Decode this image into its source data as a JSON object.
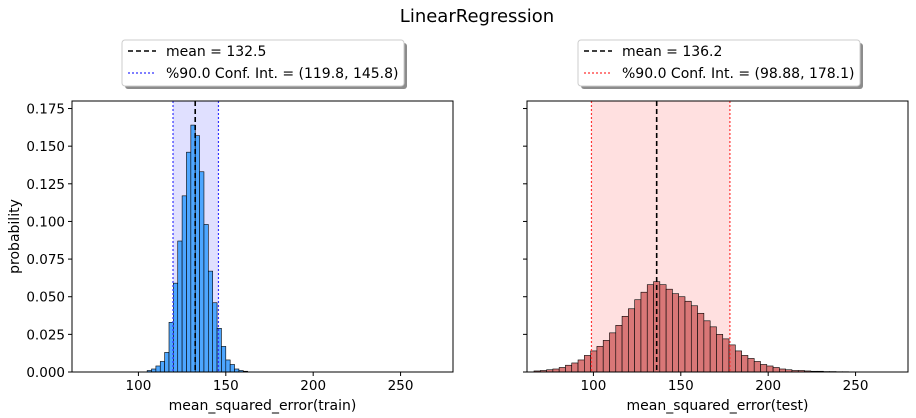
{
  "figure": {
    "title": "LinearRegression"
  },
  "chart_data": [
    {
      "type": "bar",
      "subtype": "histogram",
      "xlabel": "mean_squared_error(train)",
      "ylabel": "probability",
      "xlim": [
        62,
        280
      ],
      "ylim": [
        0,
        0.18
      ],
      "xticks": [
        100,
        150,
        200,
        250
      ],
      "yticks": [
        0.0,
        0.025,
        0.05,
        0.075,
        0.1,
        0.125,
        0.15,
        0.175
      ],
      "ytick_labels": [
        "0.000",
        "0.025",
        "0.050",
        "0.075",
        "0.100",
        "0.125",
        "0.150",
        "0.175"
      ],
      "bar_color": "#4da6ff",
      "band_color": "#e0e0ff",
      "ci_line_color": "#3333ff",
      "mean": 132.5,
      "ci": [
        119.8,
        145.8
      ],
      "bin_width": 2.5,
      "bins_start": 105,
      "values": [
        0.001,
        0.002,
        0.004,
        0.007,
        0.013,
        0.033,
        0.059,
        0.087,
        0.117,
        0.146,
        0.164,
        0.157,
        0.133,
        0.098,
        0.067,
        0.046,
        0.029,
        0.017,
        0.008,
        0.005,
        0.002,
        0.001,
        0.0005
      ],
      "legend": {
        "placement": "top-center",
        "entries": [
          {
            "label": "mean = 132.5",
            "style": "dashed",
            "color": "#000000"
          },
          {
            "label": "%90.0 Conf. Int. = (119.8, 145.8)",
            "style": "dotted",
            "color": "#3333ff"
          }
        ]
      },
      "grid": false
    },
    {
      "type": "bar",
      "subtype": "histogram",
      "xlabel": "mean_squared_error(test)",
      "ylabel": "",
      "xlim": [
        62,
        280
      ],
      "ylim": [
        0,
        0.18
      ],
      "xticks": [
        100,
        150,
        200,
        250
      ],
      "bar_color": "#d97777",
      "band_color": "#ffe0e0",
      "ci_line_color": "#ff3333",
      "mean": 136.2,
      "ci": [
        98.88,
        178.1
      ],
      "bin_width": 3.6,
      "bins_start": 66,
      "values": [
        0.0007,
        0.001,
        0.0015,
        0.002,
        0.003,
        0.0045,
        0.006,
        0.008,
        0.011,
        0.014,
        0.017,
        0.021,
        0.026,
        0.031,
        0.037,
        0.042,
        0.048,
        0.053,
        0.058,
        0.06,
        0.058,
        0.055,
        0.052,
        0.05,
        0.047,
        0.044,
        0.039,
        0.034,
        0.03,
        0.025,
        0.022,
        0.018,
        0.014,
        0.011,
        0.009,
        0.007,
        0.005,
        0.004,
        0.003,
        0.002,
        0.0015,
        0.001,
        0.001,
        0.0007,
        0.0005,
        0.0005,
        0.0003,
        0.0003,
        0.0002,
        0.0002
      ],
      "legend": {
        "placement": "top-center",
        "entries": [
          {
            "label": "mean = 136.2",
            "style": "dashed",
            "color": "#000000"
          },
          {
            "label": "%90.0 Conf. Int. = (98.88, 178.1)",
            "style": "dotted",
            "color": "#ff3333"
          }
        ]
      },
      "grid": false
    }
  ]
}
